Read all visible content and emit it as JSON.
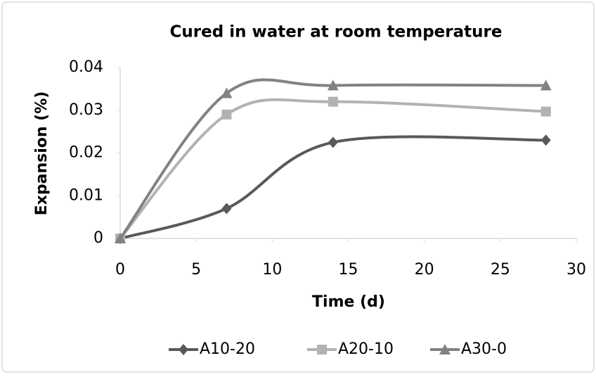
{
  "chart_data": {
    "type": "line",
    "title": "Cured in water at room temperature",
    "x_label": "Time (d)",
    "y_label": "Expansion (%)",
    "x": [
      0,
      7,
      14,
      28
    ],
    "series": [
      {
        "name": "A10-20",
        "color": "#595959",
        "marker": "diamond",
        "values": [
          0,
          0.007,
          0.0225,
          0.023
        ]
      },
      {
        "name": "A20-10",
        "color": "#b2b2b2",
        "marker": "square",
        "values": [
          0,
          0.029,
          0.032,
          0.0297
        ]
      },
      {
        "name": "A30-0",
        "color": "#828282",
        "marker": "triangle",
        "values": [
          0,
          0.034,
          0.0358,
          0.0358
        ]
      }
    ],
    "xlim": [
      0,
      30
    ],
    "xticks": [
      0,
      5,
      10,
      15,
      20,
      25,
      30
    ],
    "ylim": [
      0,
      0.04
    ],
    "yticks": [
      0,
      0.01,
      0.02,
      0.03,
      0.04
    ],
    "grid": false,
    "smooth": true,
    "legend": "bottom"
  }
}
